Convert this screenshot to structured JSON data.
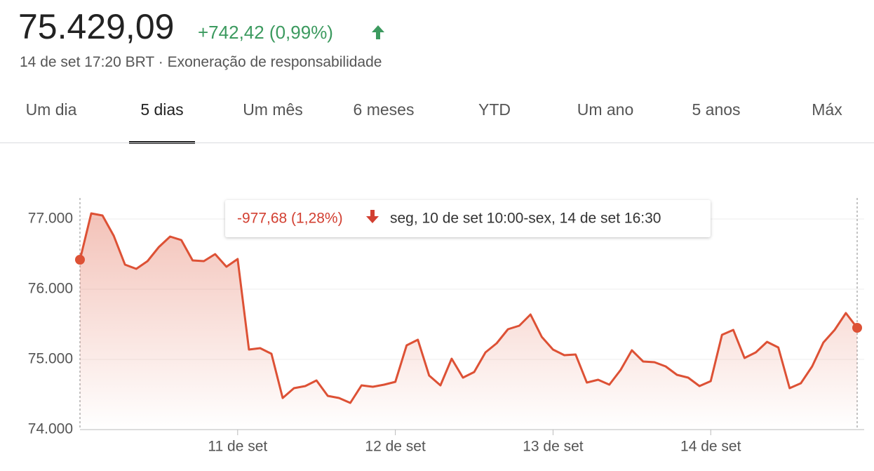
{
  "header": {
    "price": "75.429,09",
    "change": "+742,42 (0,99%)",
    "timestamp": "14 de set 17:20 BRT",
    "separator": "·",
    "disclaimer": "Exoneração de responsabilidade"
  },
  "tabs": {
    "items": [
      "Um dia",
      "5 dias",
      "Um mês",
      "6 meses",
      "YTD",
      "Um ano",
      "5 anos",
      "Máx"
    ],
    "selected": 1
  },
  "tooltip": {
    "change": "-977,68 (1,28%)",
    "range": "seg, 10 de set 10:00-sex, 14 de set 16:30"
  },
  "chart_data": {
    "type": "area",
    "categories": [
      null,
      null,
      null,
      null,
      null,
      null,
      null,
      null,
      null,
      null,
      null,
      null,
      null,
      null,
      "11 de set",
      null,
      null,
      null,
      null,
      null,
      null,
      null,
      null,
      null,
      null,
      null,
      null,
      null,
      "12 de set",
      null,
      null,
      null,
      null,
      null,
      null,
      null,
      null,
      null,
      null,
      null,
      null,
      null,
      "13 de set",
      null,
      null,
      null,
      null,
      null,
      null,
      null,
      null,
      null,
      null,
      null,
      null,
      null,
      "14 de set",
      null,
      null,
      null,
      null,
      null,
      null,
      null,
      null,
      null,
      null,
      null,
      null,
      null
    ],
    "series": [
      {
        "color": "#dd5135",
        "values": [
          76420,
          77080,
          77050,
          76760,
          76350,
          76290,
          76400,
          76600,
          76750,
          76700,
          76410,
          76400,
          76500,
          76320,
          76430,
          75140,
          75160,
          75080,
          74450,
          74590,
          74620,
          74700,
          74480,
          74450,
          74380,
          74630,
          74610,
          74640,
          74680,
          75200,
          75280,
          74770,
          74630,
          75010,
          74740,
          74820,
          75100,
          75230,
          75430,
          75480,
          75640,
          75320,
          75140,
          75060,
          75070,
          74670,
          74710,
          74640,
          74850,
          75130,
          74970,
          74960,
          74900,
          74780,
          74740,
          74620,
          74690,
          75350,
          75420,
          75020,
          75100,
          75250,
          75170,
          74590,
          74660,
          74900,
          75240,
          75420,
          75660,
          75450
        ]
      }
    ],
    "ylim": [
      74000,
      77300
    ],
    "yticks": [
      {
        "value": 74000,
        "label": "74.000"
      },
      {
        "value": 75000,
        "label": "75.000"
      },
      {
        "value": 76000,
        "label": "76.000"
      },
      {
        "value": 77000,
        "label": "77.000"
      }
    ],
    "grid": true
  }
}
